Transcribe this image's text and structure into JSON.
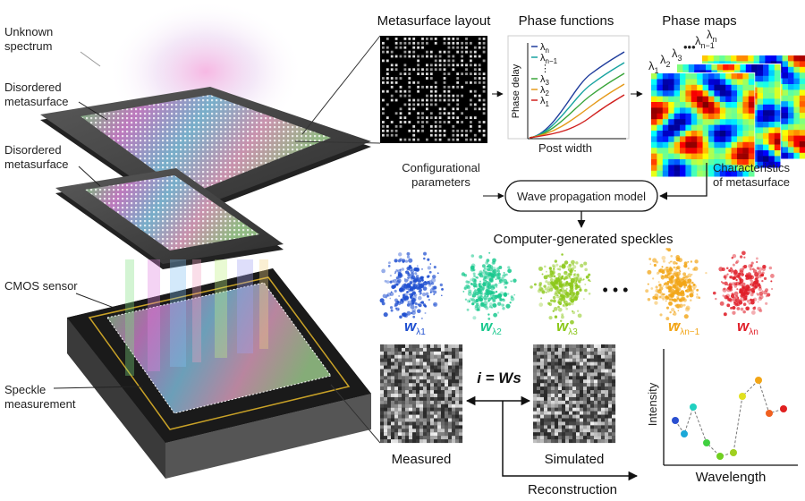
{
  "left_labels": {
    "unknown_spectrum": [
      "Unknown",
      "spectrum"
    ],
    "metasurface_1": [
      "Disordered",
      "metasurface"
    ],
    "metasurface_2": [
      "Disordered",
      "metasurface"
    ],
    "cmos": "CMOS sensor",
    "speckle_measurement": [
      "Speckle",
      "measurement"
    ]
  },
  "panels": {
    "layout_title": "Metasurface layout",
    "phase_functions_title": "Phase functions",
    "phase_maps_title": "Phase maps",
    "phase_delay": "Phase delay",
    "post_width": "Post width",
    "legend": [
      {
        "base": "λ",
        "sub": "n",
        "color": "#1f3c9c"
      },
      {
        "base": "λ",
        "sub": "n−1",
        "color": "#17a3a0"
      },
      {
        "base": "⋮",
        "sub": "",
        "color": "#555555"
      },
      {
        "base": "λ",
        "sub": "3",
        "color": "#3aa53a"
      },
      {
        "base": "λ",
        "sub": "2",
        "color": "#e59a1a"
      },
      {
        "base": "λ",
        "sub": "1",
        "color": "#d0201e"
      }
    ],
    "map_labels": [
      {
        "base": "λ",
        "sub": "1"
      },
      {
        "base": "λ",
        "sub": "2"
      },
      {
        "base": "λ",
        "sub": "3"
      },
      {
        "base": "•••",
        "sub": ""
      },
      {
        "base": "λ",
        "sub": "n−1"
      },
      {
        "base": "λ",
        "sub": "n"
      }
    ]
  },
  "model": {
    "configurational": [
      "Configurational",
      "parameters"
    ],
    "box": "Wave propagation model",
    "characteristics": [
      "Characteristics",
      "of metasurface"
    ],
    "speckles_title": "Computer-generated speckles",
    "speckles": [
      {
        "base": "w",
        "sub": "λ1",
        "color": "#1f4fd0"
      },
      {
        "base": "w",
        "sub": "λ2",
        "color": "#1bc98f"
      },
      {
        "base": "w",
        "sub": "λ3",
        "color": "#8cc81a"
      },
      {
        "base": "w",
        "sub": "λn−1",
        "color": "#f2a516"
      },
      {
        "base": "w",
        "sub": "λn",
        "color": "#e0202a"
      }
    ],
    "ellipsis": "• • •"
  },
  "bottom": {
    "measured": "Measured",
    "simulated": "Simulated",
    "equation": "i = Ws",
    "reconstruction": "Reconstruction",
    "intensity": "Intensity",
    "wavelength": "Wavelength"
  }
}
